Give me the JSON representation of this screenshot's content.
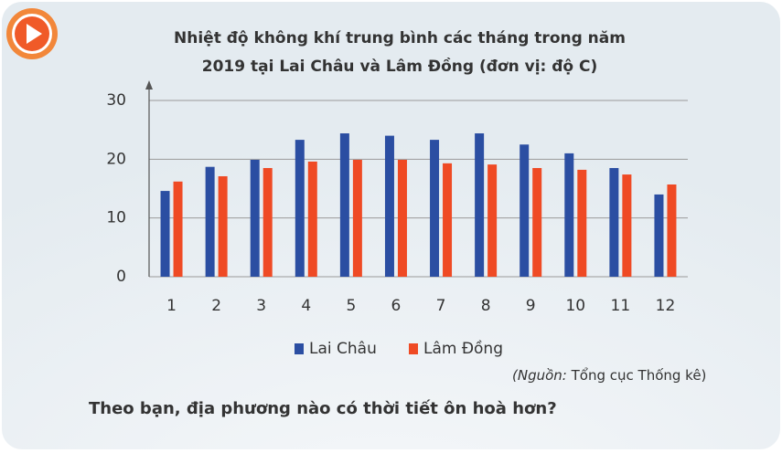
{
  "chart_data": {
    "type": "bar",
    "title_lines": [
      "Nhiệt độ không khí trung bình các tháng trong năm",
      "2019  tại Lai Châu và Lâm Đồng (đơn vị: độ C)"
    ],
    "categories": [
      "1",
      "2",
      "3",
      "4",
      "5",
      "6",
      "7",
      "8",
      "9",
      "10",
      "11",
      "12"
    ],
    "series": [
      {
        "name": "Lai Châu",
        "color": "#2b4ea2",
        "values": [
          14.6,
          18.7,
          19.9,
          23.3,
          24.4,
          24.0,
          23.3,
          24.4,
          22.5,
          21.0,
          18.5,
          14.0
        ]
      },
      {
        "name": "Lâm Đồng",
        "color": "#ef4a24",
        "values": [
          16.2,
          17.1,
          18.5,
          19.6,
          19.9,
          19.9,
          19.3,
          19.1,
          18.5,
          18.2,
          17.4,
          15.7
        ]
      }
    ],
    "ylim": [
      0,
      30
    ],
    "yticks": [
      0,
      10,
      20,
      30
    ],
    "grid": true
  },
  "source": {
    "label": "(Nguồn:",
    "text": "Tổng cục Thống kê)"
  },
  "question": "Theo bạn, địa phương nào có thời tiết ôn hoà hơn?"
}
